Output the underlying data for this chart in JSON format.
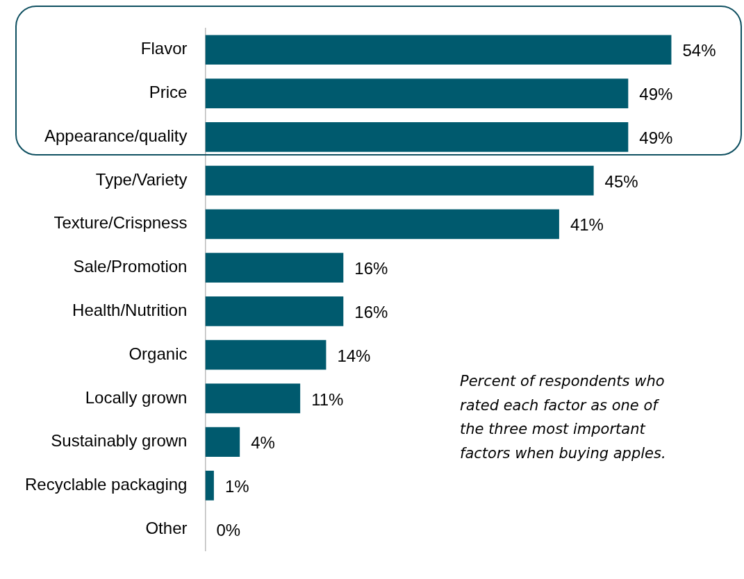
{
  "chart_data": {
    "type": "bar",
    "orientation": "horizontal",
    "categories": [
      "Flavor",
      "Price",
      "Appearance/quality",
      "Type/Variety",
      "Texture/Crispness",
      "Sale/Promotion",
      "Health/Nutrition",
      "Organic",
      "Locally grown",
      "Sustainably grown",
      "Recyclable packaging",
      "Other"
    ],
    "values": [
      54,
      49,
      49,
      45,
      41,
      16,
      16,
      14,
      11,
      4,
      1,
      0
    ],
    "value_labels": [
      "54%",
      "49%",
      "49%",
      "45%",
      "41%",
      "16%",
      "16%",
      "14%",
      "11%",
      "4%",
      "1%",
      "0%"
    ],
    "color": "#005a6e",
    "legend": false,
    "annotations": [
      "Percent of respondents who rated each factor as one of the three most important factors when buying apples."
    ]
  }
}
